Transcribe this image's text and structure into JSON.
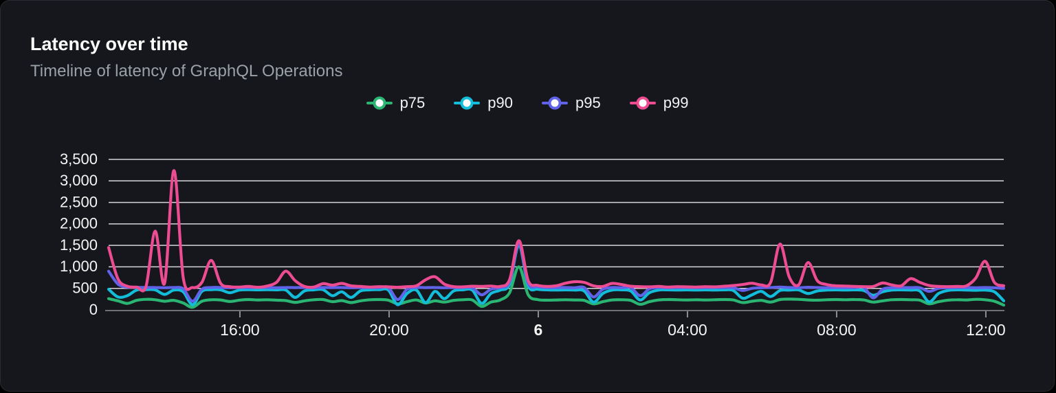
{
  "card": {
    "title": "Latency over time",
    "subtitle": "Timeline of latency of GraphQL Operations"
  },
  "chart_data": {
    "type": "line",
    "title": "Latency over time",
    "subtitle": "Timeline of latency of GraphQL Operations",
    "grid": "horizontal",
    "legend_position": "top-center",
    "x_axis": {
      "unit": "time-of-day",
      "start_hour": 12.48,
      "step_hours": 0.25,
      "ticks": [
        {
          "label": "16:00",
          "hour": 16,
          "bold": false
        },
        {
          "label": "20:00",
          "hour": 20,
          "bold": false
        },
        {
          "label": "6",
          "hour": 24,
          "bold": true
        },
        {
          "label": "04:00",
          "hour": 28,
          "bold": false
        },
        {
          "label": "08:00",
          "hour": 32,
          "bold": false
        },
        {
          "label": "12:00",
          "hour": 36,
          "bold": false
        }
      ]
    },
    "y_axis": {
      "min": 0,
      "max": 3500,
      "tick_step": 500,
      "tick_labels": [
        "0",
        "500",
        "1,000",
        "1,500",
        "2,000",
        "2,500",
        "3,000",
        "3,500"
      ]
    },
    "style": {
      "gridline_color": "#e7e7eb",
      "axis_line_color": "#6e7176",
      "tick_color": "#8b8e94",
      "axis_label_color": "#f5f5f5"
    },
    "series": [
      {
        "name": "p75",
        "color": "#2bb573",
        "values": [
          260,
          210,
          150,
          220,
          245,
          235,
          200,
          220,
          160,
          60,
          200,
          235,
          230,
          195,
          225,
          240,
          230,
          235,
          225,
          215,
          175,
          210,
          235,
          240,
          190,
          215,
          170,
          210,
          235,
          240,
          225,
          140,
          190,
          230,
          160,
          210,
          180,
          220,
          235,
          230,
          80,
          180,
          230,
          400,
          1000,
          350,
          240,
          225,
          230,
          235,
          230,
          220,
          140,
          190,
          230,
          235,
          220,
          130,
          190,
          230,
          240,
          235,
          230,
          235,
          230,
          235,
          240,
          230,
          170,
          200,
          220,
          180,
          240,
          250,
          245,
          230,
          225,
          235,
          240,
          235,
          240,
          230,
          180,
          210,
          235,
          240,
          235,
          225,
          140,
          190,
          225,
          235,
          230,
          245,
          235,
          200,
          110
        ]
      },
      {
        "name": "p90",
        "color": "#13bcd9",
        "values": [
          480,
          300,
          330,
          460,
          470,
          465,
          360,
          460,
          420,
          120,
          430,
          470,
          465,
          400,
          460,
          470,
          465,
          470,
          465,
          460,
          290,
          440,
          465,
          470,
          330,
          420,
          290,
          440,
          465,
          470,
          460,
          120,
          380,
          460,
          170,
          430,
          260,
          440,
          465,
          460,
          150,
          380,
          460,
          600,
          1500,
          560,
          480,
          465,
          460,
          465,
          460,
          440,
          180,
          380,
          460,
          465,
          440,
          230,
          400,
          460,
          465,
          460,
          465,
          460,
          465,
          460,
          465,
          450,
          270,
          350,
          430,
          310,
          450,
          460,
          465,
          380,
          440,
          460,
          465,
          460,
          465,
          450,
          340,
          420,
          460,
          465,
          460,
          440,
          185,
          380,
          450,
          465,
          460,
          455,
          460,
          420,
          210
        ]
      },
      {
        "name": "p95",
        "color": "#6062e8",
        "values": [
          900,
          600,
          530,
          525,
          520,
          520,
          515,
          520,
          490,
          200,
          480,
          520,
          520,
          515,
          520,
          518,
          522,
          520,
          515,
          520,
          518,
          520,
          515,
          520,
          518,
          520,
          515,
          518,
          520,
          515,
          520,
          240,
          480,
          520,
          518,
          520,
          515,
          518,
          520,
          515,
          350,
          480,
          520,
          650,
          1540,
          620,
          540,
          520,
          518,
          520,
          515,
          520,
          300,
          480,
          520,
          515,
          520,
          330,
          490,
          520,
          515,
          518,
          520,
          515,
          518,
          520,
          518,
          515,
          450,
          500,
          515,
          520,
          530,
          520,
          515,
          525,
          520,
          515,
          520,
          518,
          515,
          520,
          280,
          480,
          515,
          520,
          518,
          515,
          430,
          500,
          515,
          518,
          520,
          515,
          520,
          515,
          500
        ]
      },
      {
        "name": "p99",
        "color": "#ed4c92",
        "values": [
          1450,
          720,
          550,
          530,
          540,
          1830,
          620,
          3240,
          750,
          520,
          640,
          1150,
          620,
          540,
          530,
          545,
          525,
          555,
          640,
          900,
          680,
          545,
          530,
          610,
          575,
          615,
          560,
          545,
          530,
          540,
          535,
          525,
          540,
          560,
          700,
          770,
          600,
          540,
          535,
          550,
          545,
          555,
          545,
          700,
          1610,
          680,
          570,
          545,
          560,
          620,
          655,
          640,
          560,
          545,
          615,
          590,
          550,
          540,
          535,
          545,
          530,
          540,
          535,
          530,
          540,
          535,
          550,
          565,
          590,
          620,
          580,
          640,
          1530,
          760,
          580,
          1100,
          680,
          590,
          560,
          555,
          545,
          540,
          545,
          625,
          580,
          560,
          725,
          640,
          565,
          545,
          540,
          545,
          560,
          740,
          1130,
          640,
          560
        ]
      }
    ]
  }
}
